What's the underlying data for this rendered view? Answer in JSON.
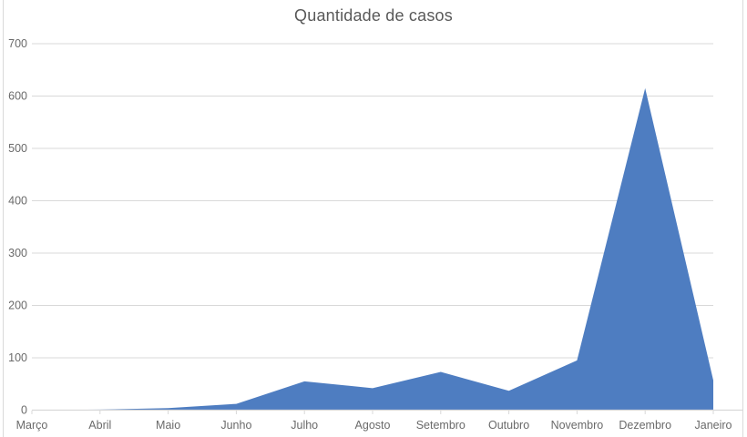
{
  "chart_data": {
    "type": "area",
    "title": "Quantidade de casos",
    "categories": [
      "Março",
      "Abril",
      "Maio",
      "Junho",
      "Julho",
      "Agosto",
      "Setembro",
      "Outubro",
      "Novembro",
      "Dezembro",
      "Janeiro"
    ],
    "values": [
      0,
      1,
      4,
      12,
      55,
      42,
      73,
      37,
      95,
      615,
      57
    ],
    "xlabel": "",
    "ylabel": "",
    "ylim": [
      0,
      700
    ],
    "yticks": [
      0,
      100,
      200,
      300,
      400,
      500,
      600,
      700
    ],
    "grid": true,
    "legend": "none",
    "colors": {
      "area_fill": "#4E7DC1",
      "title_text": "#595959",
      "axis_label_text": "#6A6A6A",
      "gridline": "#D9D9D9",
      "axis_line": "#D9D9D9",
      "tick_mark": "#D9D9D9",
      "chart_border": "#D9D9D9"
    }
  }
}
